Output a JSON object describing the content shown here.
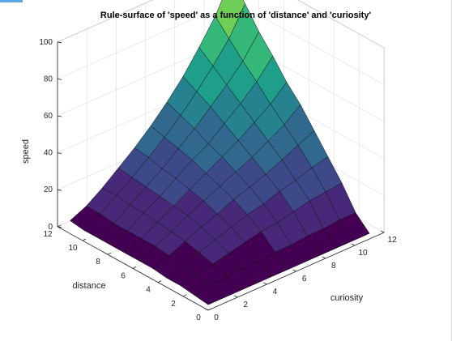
{
  "window": {
    "accent_color": "#5aa9e6"
  },
  "chart_data": {
    "type": "surface",
    "title": "Rule-surface of 'speed' as a function of 'distance' and 'curiosity'",
    "xlabel": "curiosity",
    "ylabel": "distance",
    "zlabel": "speed",
    "xlim": [
      0,
      12
    ],
    "ylim": [
      0,
      12
    ],
    "zlim": [
      0,
      100
    ],
    "xticks": [
      "0",
      "2",
      "4",
      "6",
      "8",
      "10",
      "12"
    ],
    "yticks": [
      "0",
      "2",
      "4",
      "6",
      "8",
      "10",
      "12"
    ],
    "zticks": [
      "0",
      "20",
      "40",
      "60",
      "80",
      "100"
    ],
    "grid": true,
    "colormap": [
      "#440154",
      "#482878",
      "#3e4989",
      "#31688e",
      "#26828e",
      "#1f9e89",
      "#35b779",
      "#6ece58",
      "#b5de2b"
    ],
    "x": [
      0,
      1.1,
      2.2,
      3.3,
      4.4,
      5.5,
      6.6,
      7.7,
      8.8,
      9.9,
      11
    ],
    "y": [
      0,
      1.1,
      2.2,
      3.3,
      4.4,
      5.5,
      6.6,
      7.7,
      8.8,
      9.9,
      11
    ],
    "z": [
      [
        3,
        3,
        3,
        3,
        3,
        3,
        3,
        3,
        3,
        3,
        3
      ],
      [
        4,
        5,
        6,
        7,
        7,
        8,
        8,
        9,
        9,
        10,
        10
      ],
      [
        5,
        7,
        9,
        11,
        13,
        15,
        16,
        18,
        20,
        21,
        22
      ],
      [
        5,
        8,
        11,
        14,
        17,
        20,
        22,
        25,
        27,
        30,
        32
      ],
      [
        6,
        9,
        13,
        17,
        20,
        24,
        27,
        30,
        34,
        38,
        42
      ],
      [
        6,
        10,
        14,
        19,
        23,
        27,
        31,
        35,
        40,
        45,
        52
      ],
      [
        6,
        10,
        15,
        20,
        25,
        30,
        35,
        40,
        46,
        52,
        60
      ],
      [
        6,
        10,
        16,
        21,
        27,
        33,
        38,
        45,
        52,
        60,
        70
      ],
      [
        6,
        10,
        16,
        22,
        28,
        35,
        42,
        50,
        58,
        67,
        79
      ],
      [
        6,
        11,
        17,
        23,
        30,
        37,
        45,
        54,
        64,
        75,
        90
      ],
      [
        7,
        11,
        17,
        24,
        31,
        39,
        48,
        58,
        70,
        83,
        100
      ]
    ]
  }
}
